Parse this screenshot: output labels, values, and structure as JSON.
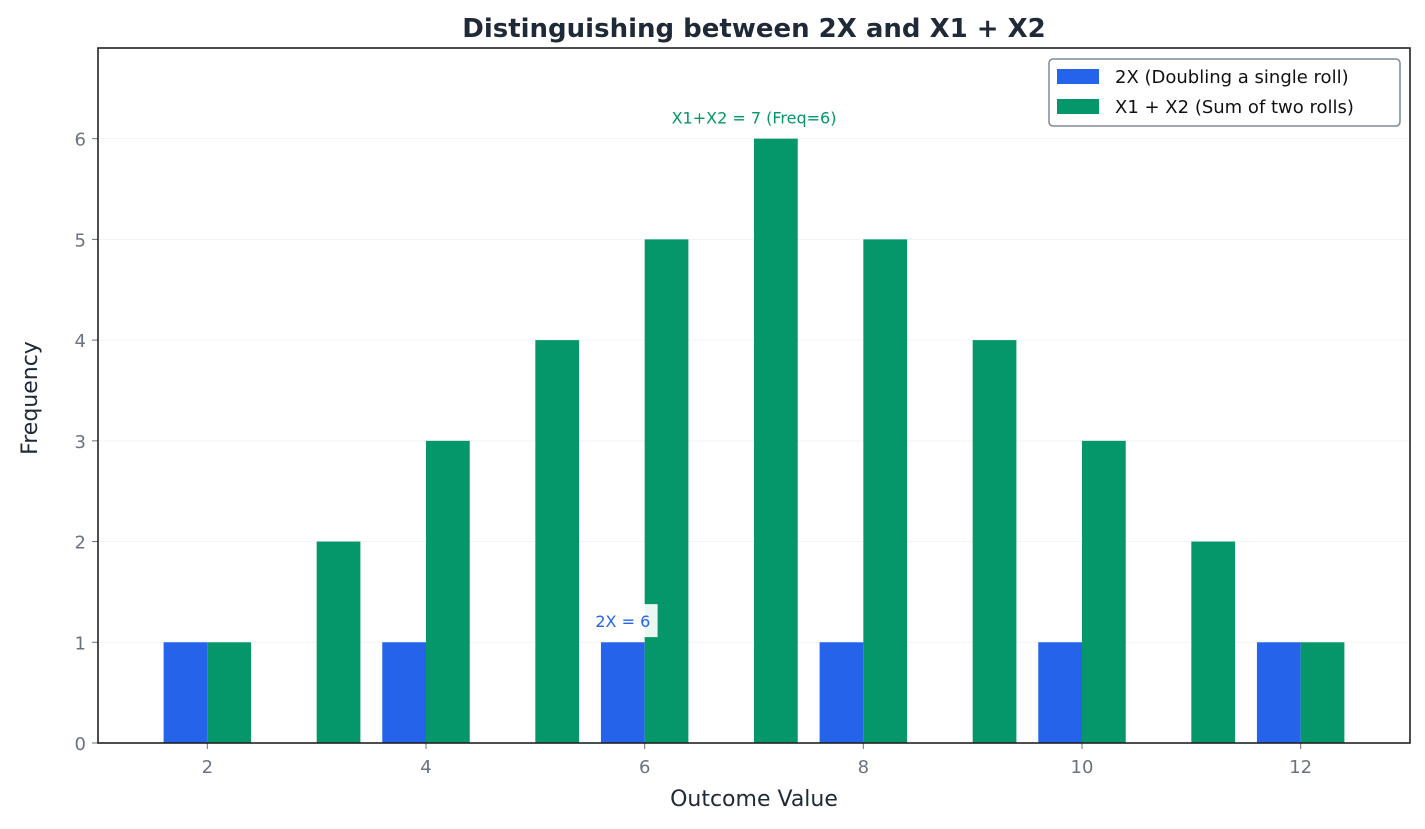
{
  "chart_data": {
    "type": "bar",
    "title": "Distinguishing between 2X and X1 + X2",
    "xlabel": "Outcome Value",
    "ylabel": "Frequency",
    "xlim": [
      1,
      13
    ],
    "ylim": [
      0,
      6.9
    ],
    "xticks": [
      2,
      4,
      6,
      8,
      10,
      12
    ],
    "yticks": [
      0,
      1,
      2,
      3,
      4,
      5,
      6
    ],
    "grid": "horizontal",
    "legend_placement": "top-right",
    "series": [
      {
        "name": "2X (Doubling a single roll)",
        "color": "#2563eb",
        "offset": -0.2,
        "x": [
          2,
          4,
          6,
          8,
          10,
          12
        ],
        "values": [
          1,
          1,
          1,
          1,
          1,
          1
        ]
      },
      {
        "name": "X1 + X2 (Sum of two rolls)",
        "color": "#059669",
        "offset": 0.2,
        "x": [
          2,
          3,
          4,
          5,
          6,
          7,
          8,
          9,
          10,
          11,
          12
        ],
        "values": [
          1,
          2,
          3,
          4,
          5,
          6,
          5,
          4,
          3,
          2,
          1
        ]
      }
    ],
    "bar_width": 0.4,
    "annotations": [
      {
        "text": "2X = 6",
        "x": 5.8,
        "y": 1.2,
        "color": "#2563eb"
      },
      {
        "text": "X1+X2 = 7 (Freq=6)",
        "x": 7.0,
        "y": 6.2,
        "color": "#059669"
      }
    ]
  }
}
